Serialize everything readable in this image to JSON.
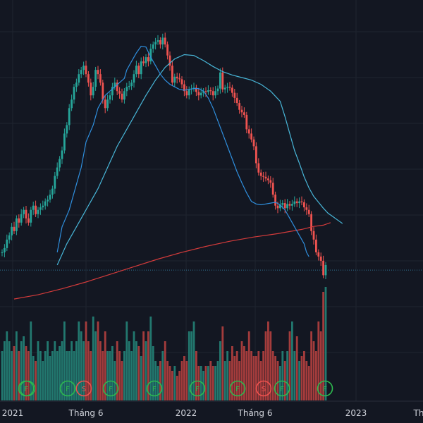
{
  "theme": {
    "background": "#131722",
    "grid": "#1f2430",
    "up": "#26a69a",
    "down": "#ef5350",
    "up_volume": "#22786f",
    "down_volume": "#a43c3c",
    "ma_fast": "#2f8fde",
    "ma_mid": "#48b6d8",
    "ma_long": "#d33b3b",
    "marker_ring": "#2dbb4f",
    "marker_s_ring": "#ef5350",
    "axis_text": "#d1d4dc",
    "price_line": "#2f6f8f"
  },
  "chart_data": {
    "type": "candlestick",
    "title": "",
    "xlabel": "",
    "ylabel": "",
    "x_tick_labels": [
      "2021",
      "Tháng 6",
      "2022",
      "Tháng 6",
      "2023",
      "Th"
    ],
    "grid": true,
    "start_price": 27,
    "closes": [
      27,
      27.5,
      28.5,
      29,
      30,
      29.5,
      31,
      30.5,
      31.5,
      32,
      31,
      30.5,
      32,
      32.5,
      31.5,
      32,
      32.3,
      32.5,
      33,
      33.2,
      33.8,
      34.5,
      36,
      37,
      38,
      39,
      41,
      42,
      44,
      45,
      46.5,
      47,
      48,
      48.5,
      49,
      48,
      47,
      45.5,
      46.5,
      48.5,
      48,
      47,
      45,
      44,
      45,
      45.5,
      46.5,
      47,
      46,
      45.7,
      45,
      46,
      46.5,
      46.6,
      47,
      48,
      49,
      48,
      49.5,
      49.3,
      50,
      49.5,
      51,
      51.5,
      51.8,
      52,
      51.5,
      52.3,
      51.5,
      50.2,
      49,
      47,
      47.7,
      47.5,
      47.4,
      46.8,
      46,
      45.5,
      46.2,
      46.3,
      46.4,
      45.9,
      45.5,
      45.8,
      46,
      45.9,
      46.1,
      46,
      45.5,
      46,
      46.3,
      48.2,
      46.2,
      46.4,
      46.5,
      46.4,
      45.8,
      45.2,
      44.6,
      43.8,
      43.5,
      43.2,
      41.5,
      41,
      40.3,
      39.5,
      37.5,
      36.4,
      36,
      35.9,
      35.7,
      35.5,
      35.2,
      33.8,
      32.5,
      32.2,
      32.6,
      32.8,
      32.2,
      32.7,
      32.5,
      32.7,
      33,
      32.8,
      33,
      32.9,
      32.3,
      32,
      31.5,
      29.5,
      28.5,
      27,
      26.5,
      26,
      24.3,
      25.5
    ],
    "volumes": [
      5,
      6,
      7,
      6,
      5,
      5.5,
      7,
      5,
      6,
      6.5,
      5.5,
      5,
      8,
      4.5,
      4,
      6,
      5,
      4,
      5,
      6,
      4.5,
      5,
      6,
      5,
      5.5,
      6,
      8,
      5,
      5,
      6,
      5,
      6,
      8,
      7,
      6,
      8,
      6,
      5,
      8.5,
      7,
      8,
      6,
      5,
      7,
      5,
      5,
      5.5,
      4,
      6,
      5,
      4,
      5,
      8,
      6,
      5,
      7,
      6,
      5.5,
      4.5,
      7,
      6,
      7,
      8.5,
      5.5,
      4,
      3.5,
      4,
      5,
      6,
      4,
      3.5,
      3,
      3.5,
      2.5,
      3,
      4,
      4.5,
      4,
      7,
      7,
      8,
      5,
      3.5,
      3.5,
      3,
      3.5,
      3.5,
      4,
      3.5,
      3.5,
      4,
      6,
      7.5,
      4,
      5,
      4,
      5.5,
      4.5,
      5,
      4,
      6,
      5.5,
      5,
      7,
      5,
      4.5,
      4.5,
      5,
      4,
      5,
      7,
      8,
      7,
      5,
      4.5,
      4,
      3.5,
      5,
      4,
      5,
      7,
      8,
      5,
      6.5,
      4,
      4.5,
      5,
      4,
      3.5,
      7,
      6,
      5,
      8,
      7,
      11,
      11.5
    ],
    "ma_fast": [
      [
        27,
        23
      ],
      [
        30,
        25
      ],
      [
        32,
        28
      ],
      [
        34,
        30
      ],
      [
        37,
        33
      ],
      [
        40,
        35
      ],
      [
        42,
        38
      ],
      [
        44,
        40
      ],
      [
        45.5,
        43
      ],
      [
        46,
        45
      ],
      [
        46.5,
        47
      ],
      [
        47,
        49
      ],
      [
        47.5,
        51
      ],
      [
        48.5,
        52
      ],
      [
        49.5,
        54
      ],
      [
        50.5,
        56
      ],
      [
        51.3,
        58
      ],
      [
        51.2,
        60
      ],
      [
        50,
        62
      ],
      [
        49,
        64
      ],
      [
        48,
        66
      ],
      [
        47.3,
        68
      ],
      [
        46.8,
        70
      ],
      [
        46.5,
        72
      ],
      [
        46.2,
        74
      ],
      [
        46.1,
        76
      ],
      [
        46.2,
        78
      ],
      [
        46.3,
        80
      ],
      [
        46.3,
        82
      ],
      [
        46,
        84
      ],
      [
        45.2,
        86
      ],
      [
        44,
        88
      ],
      [
        42.5,
        90
      ],
      [
        41,
        92
      ],
      [
        39.5,
        94
      ],
      [
        38,
        96
      ],
      [
        36.5,
        98
      ],
      [
        35.2,
        100
      ],
      [
        34,
        102
      ],
      [
        33,
        104
      ],
      [
        32.7,
        106
      ],
      [
        32.6,
        108
      ],
      [
        32.7,
        110
      ],
      [
        32.8,
        112
      ],
      [
        32.9,
        114
      ],
      [
        32.6,
        116
      ],
      [
        32,
        118
      ],
      [
        31,
        120
      ],
      [
        30,
        122
      ],
      [
        29,
        124
      ],
      [
        28,
        126
      ],
      [
        27,
        127
      ],
      [
        26.5,
        128
      ]
    ],
    "ma_mid": [
      [
        25.5,
        23
      ],
      [
        28,
        27
      ],
      [
        30,
        31
      ],
      [
        32,
        35
      ],
      [
        34.5,
        40
      ],
      [
        37,
        44
      ],
      [
        39.5,
        48
      ],
      [
        41.5,
        52
      ],
      [
        43.5,
        56
      ],
      [
        45.5,
        60
      ],
      [
        47.3,
        64
      ],
      [
        48.8,
        68
      ],
      [
        49.8,
        72
      ],
      [
        50.3,
        76
      ],
      [
        50.2,
        80
      ],
      [
        49.6,
        84
      ],
      [
        48.9,
        88
      ],
      [
        48.3,
        92
      ],
      [
        47.9,
        96
      ],
      [
        47.6,
        100
      ],
      [
        47.3,
        104
      ],
      [
        46.8,
        108
      ],
      [
        46,
        112
      ],
      [
        44.8,
        116
      ],
      [
        43,
        118
      ],
      [
        41,
        120
      ],
      [
        39,
        122
      ],
      [
        37.5,
        124
      ],
      [
        35.9,
        126
      ],
      [
        34.6,
        128
      ],
      [
        33.6,
        130
      ],
      [
        32.9,
        132
      ],
      [
        32.2,
        134
      ],
      [
        31.6,
        136
      ],
      [
        31.2,
        138
      ],
      [
        30.8,
        140
      ],
      [
        30.4,
        142
      ]
    ],
    "ma_long": [
      [
        21.5,
        5
      ],
      [
        22,
        15
      ],
      [
        22.7,
        25
      ],
      [
        23.5,
        35
      ],
      [
        24.4,
        45
      ],
      [
        25.3,
        55
      ],
      [
        26.2,
        65
      ],
      [
        27,
        75
      ],
      [
        27.7,
        85
      ],
      [
        28.3,
        95
      ],
      [
        28.8,
        105
      ],
      [
        29.2,
        115
      ],
      [
        29.7,
        125
      ],
      [
        30.05,
        130
      ],
      [
        30.2,
        134
      ],
      [
        30.5,
        137
      ]
    ],
    "current_price_line": 24.9,
    "markers": [
      {
        "type": "F",
        "count": 2
      },
      {
        "type": "F",
        "count": 1
      },
      {
        "type": "S",
        "count": 1
      },
      {
        "type": "F",
        "count": 1
      },
      {
        "type": "F",
        "count": 1
      },
      {
        "type": "F",
        "count": 1
      },
      {
        "type": "F",
        "count": 1
      },
      {
        "type": "S",
        "count": 1
      },
      {
        "type": "F",
        "count": 1
      },
      {
        "type": "F",
        "count": 1
      }
    ]
  }
}
